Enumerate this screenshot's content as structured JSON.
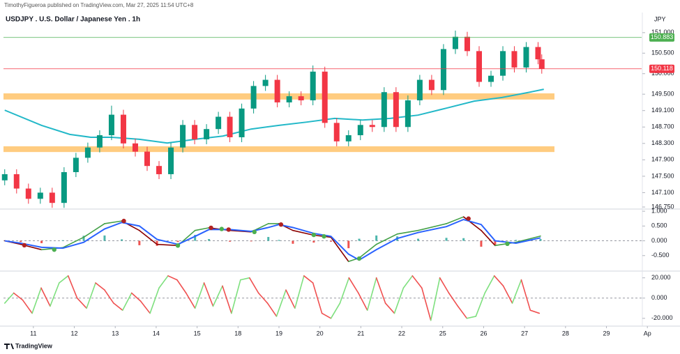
{
  "header": "TimothyFigueroa published on TradingView.com, Mar 27, 2025 11:54 UTC+8",
  "currency": "JPY",
  "footer_brand": "TradingView",
  "chart_data": [
    {
      "type": "candlestick",
      "title": "USDJPY . U.S. Dollar / Japanese Yen . 1h",
      "xlim": [
        -0.73,
        14.86
      ],
      "xticks": [
        {
          "value": 0,
          "label": "11"
        },
        {
          "value": 1,
          "label": "12"
        },
        {
          "value": 2,
          "label": "13"
        },
        {
          "value": 3,
          "label": "14"
        },
        {
          "value": 4,
          "label": "15"
        },
        {
          "value": 5,
          "label": "18"
        },
        {
          "value": 6,
          "label": "19"
        },
        {
          "value": 7,
          "label": "20"
        },
        {
          "value": 8,
          "label": "21"
        },
        {
          "value": 9,
          "label": "22"
        },
        {
          "value": 10,
          "label": "25"
        },
        {
          "value": 11,
          "label": "26"
        },
        {
          "value": 12,
          "label": "27"
        },
        {
          "value": 13,
          "label": "28"
        },
        {
          "value": 14,
          "label": "29"
        },
        {
          "value": 15,
          "label": "Ap"
        }
      ],
      "ylim": [
        146.7,
        151.49
      ],
      "yticks": [
        {
          "value": 151,
          "label": "151.000"
        },
        {
          "value": 150.5,
          "label": "150.500"
        },
        {
          "value": 150,
          "label": "150.000"
        },
        {
          "value": 149.5,
          "label": "149.500"
        },
        {
          "value": 149.1,
          "label": "149.100"
        },
        {
          "value": 148.7,
          "label": "148.700"
        },
        {
          "value": 148.3,
          "label": "148.300"
        },
        {
          "value": 147.9,
          "label": "147.900"
        },
        {
          "value": 147.5,
          "label": "147.500"
        },
        {
          "value": 147.1,
          "label": "147.100"
        },
        {
          "value": 146.75,
          "label": "146.750"
        }
      ],
      "up_color": "#089981",
      "down_color": "#f23645",
      "x": [
        -0.7,
        -0.41,
        -0.12,
        0.17,
        0.46,
        0.75,
        1.04,
        1.33,
        1.62,
        1.91,
        2.2,
        2.49,
        2.78,
        3.07,
        3.36,
        3.65,
        3.94,
        4.23,
        4.52,
        4.8,
        5.09,
        5.38,
        5.67,
        5.96,
        6.25,
        6.54,
        6.83,
        7.12,
        7.41,
        7.7,
        7.99,
        8.28,
        8.57,
        8.86,
        9.15,
        9.44,
        9.73,
        10.02,
        10.31,
        10.6,
        10.89,
        11.18,
        11.47,
        11.75,
        12.04,
        12.33,
        12.42
      ],
      "open": [
        147.4,
        147.55,
        147.2,
        146.95,
        147.1,
        146.85,
        147.6,
        147.95,
        148.2,
        148.5,
        149.0,
        148.3,
        148.1,
        147.75,
        147.55,
        148.2,
        148.75,
        148.4,
        148.65,
        148.95,
        148.45,
        149.15,
        149.7,
        149.85,
        149.3,
        149.45,
        149.35,
        150.05,
        148.8,
        148.35,
        148.5,
        148.75,
        148.7,
        149.55,
        148.7,
        149.35,
        149.85,
        149.6,
        150.6,
        150.9,
        150.55,
        149.8,
        149.95,
        150.55,
        150.15,
        150.65,
        150.35
      ],
      "high": [
        147.67,
        147.67,
        147.32,
        147.22,
        147.22,
        147.72,
        148.07,
        148.32,
        148.62,
        149.22,
        149.12,
        148.42,
        148.22,
        147.87,
        148.32,
        148.87,
        148.87,
        148.77,
        149.07,
        149.07,
        149.27,
        149.82,
        149.97,
        149.97,
        149.57,
        149.57,
        150.2,
        150.17,
        148.92,
        148.62,
        148.87,
        148.87,
        149.67,
        149.67,
        149.47,
        149.97,
        149.97,
        150.72,
        151.05,
        151.02,
        150.67,
        150.07,
        150.67,
        150.67,
        150.77,
        150.77,
        150.47
      ],
      "low": [
        147.28,
        147.08,
        146.83,
        146.83,
        146.73,
        146.73,
        147.48,
        147.83,
        148.08,
        148.38,
        148.18,
        147.98,
        147.63,
        147.43,
        147.43,
        148.08,
        148.28,
        148.28,
        148.53,
        148.33,
        148.33,
        149.03,
        149.58,
        149.18,
        149.18,
        149.23,
        149.23,
        148.68,
        148.23,
        148.23,
        148.38,
        148.58,
        148.58,
        148.58,
        148.58,
        149.23,
        149.48,
        149.48,
        150.48,
        150.43,
        149.68,
        149.68,
        149.83,
        150.03,
        150.03,
        150.23,
        150.0
      ],
      "close": [
        147.55,
        147.2,
        146.95,
        147.1,
        146.85,
        147.6,
        147.95,
        148.2,
        148.5,
        149.0,
        148.3,
        148.1,
        147.75,
        147.55,
        148.2,
        148.75,
        148.4,
        148.65,
        148.95,
        148.45,
        149.15,
        149.7,
        149.85,
        149.3,
        149.45,
        149.35,
        150.05,
        148.8,
        148.35,
        148.5,
        148.75,
        148.7,
        149.55,
        148.7,
        149.35,
        149.85,
        149.6,
        150.6,
        150.9,
        150.55,
        149.8,
        149.95,
        150.55,
        150.15,
        150.65,
        150.35,
        150.12
      ],
      "series": [
        {
          "color": "#22b8c8",
          "x": [
            -0.7,
            0.2,
            0.89,
            1.4,
            1.91,
            2.59,
            3.27,
            3.95,
            4.63,
            5.32,
            6.0,
            6.68,
            7.36,
            8.04,
            8.72,
            9.4,
            10.09,
            10.77,
            11.45,
            12.13,
            12.47
          ],
          "values": [
            149.11,
            148.74,
            148.52,
            148.45,
            148.45,
            148.4,
            148.31,
            148.4,
            148.48,
            148.65,
            148.74,
            148.82,
            148.91,
            148.87,
            148.91,
            148.99,
            149.16,
            149.33,
            149.42,
            149.55,
            149.62
          ]
        }
      ],
      "zone_color": "#ffcc80",
      "zones": [
        {
          "from": 149.37,
          "to": 149.52,
          "x0": -0.73,
          "x1": 12.73
        },
        {
          "from": 148.09,
          "to": 148.23,
          "x0": -0.73,
          "x1": 12.73
        }
      ],
      "price_lines": [
        {
          "value": 150.883,
          "label": "150.883",
          "color": "#4caf50"
        },
        {
          "value": 150.118,
          "label": "150.118",
          "color": "#f23645"
        }
      ]
    },
    {
      "type": "macd",
      "ylim": [
        -1.0,
        1.05
      ],
      "zero_line": true,
      "yticks": [
        {
          "value": 1,
          "label": "1.000"
        },
        {
          "value": 0.5,
          "label": "0.500"
        },
        {
          "value": 0,
          "label": "0.000"
        },
        {
          "value": -0.5,
          "label": "-0.500"
        }
      ],
      "series": [
        {
          "up_color": "#43a047",
          "down_color": "#8b0000",
          "x": [
            -0.7,
            -0.31,
            0.2,
            0.72,
            1.23,
            1.74,
            2.16,
            2.59,
            3.02,
            3.53,
            3.95,
            4.29,
            4.8,
            5.32,
            5.74,
            6.0,
            6.34,
            6.85,
            7.27,
            7.7,
            7.96,
            8.38,
            8.89,
            9.4,
            10.09,
            10.51,
            10.94,
            11.28,
            11.79,
            12.39
          ],
          "values": [
            0,
            -0.12,
            -0.3,
            -0.23,
            0.12,
            0.58,
            0.67,
            0.35,
            -0.12,
            -0.16,
            0.35,
            0.44,
            0.35,
            0.3,
            0.58,
            0.58,
            0.35,
            0.19,
            0.12,
            -0.7,
            -0.58,
            -0.12,
            0.23,
            0.35,
            0.58,
            0.81,
            0.35,
            -0.16,
            -0.05,
            0.16
          ]
        },
        {
          "color": "#2962ff",
          "x": [
            -0.7,
            -0.31,
            0.2,
            0.72,
            1.23,
            1.74,
            2.16,
            2.59,
            3.02,
            3.53,
            3.95,
            4.29,
            4.8,
            5.32,
            5.74,
            6.0,
            6.34,
            6.85,
            7.27,
            7.7,
            7.96,
            8.38,
            8.89,
            9.4,
            10.09,
            10.51,
            10.94,
            11.28,
            11.79,
            12.39
          ],
          "values": [
            0,
            -0.08,
            -0.22,
            -0.25,
            -0.05,
            0.4,
            0.62,
            0.5,
            0.05,
            -0.12,
            0.15,
            0.38,
            0.38,
            0.32,
            0.45,
            0.55,
            0.45,
            0.25,
            0.15,
            -0.45,
            -0.65,
            -0.3,
            0.08,
            0.28,
            0.48,
            0.72,
            0.55,
            0.0,
            -0.08,
            0.1
          ]
        }
      ],
      "histogram": {
        "up_color": "#4db6ac",
        "down_color": "#ef5350",
        "x": [
          -0.7,
          -0.31,
          0.2,
          0.72,
          1.23,
          1.74,
          2.16,
          2.59,
          3.02,
          3.53,
          3.95,
          4.29,
          4.8,
          5.32,
          5.74,
          6.0,
          6.34,
          6.85,
          7.27,
          7.7,
          7.96,
          8.38,
          8.89,
          9.4,
          10.09,
          10.51,
          10.94,
          11.28,
          11.79,
          12.39
        ],
        "values": [
          0,
          -0.04,
          -0.08,
          0.02,
          0.17,
          0.18,
          0.05,
          -0.15,
          -0.17,
          -0.04,
          0.2,
          0.06,
          -0.03,
          -0.02,
          0.13,
          0.03,
          -0.1,
          -0.06,
          -0.03,
          -0.25,
          0.07,
          0.18,
          0.15,
          0.07,
          0.1,
          0.09,
          -0.2,
          -0.16,
          0.03,
          0.06
        ]
      },
      "signals": {
        "x": [
          -0.22,
          0.51,
          2.21,
          3.53,
          4.34,
          4.6,
          4.77,
          5.4,
          6.05,
          6.85,
          7.1,
          7.96,
          10.63,
          11.58
        ],
        "values": [
          -0.15,
          -0.3,
          0.67,
          -0.16,
          0.44,
          0.4,
          0.38,
          0.3,
          0.55,
          0.2,
          0.15,
          -0.6,
          0.75,
          -0.1
        ],
        "colors": [
          "#b22222",
          "#4caf50",
          "#b22222",
          "#4caf50",
          "#b22222",
          "#4caf50",
          "#b22222",
          "#4caf50",
          "#b22222",
          "#4caf50",
          "#4caf50",
          "#4caf50",
          "#b22222",
          "#4caf50"
        ]
      }
    },
    {
      "type": "line",
      "ylim": [
        -27,
        26
      ],
      "zero_line": true,
      "yticks": [
        {
          "value": 20,
          "label": "20.000"
        },
        {
          "value": 0,
          "label": "0.000"
        },
        {
          "value": -20,
          "label": "-20.000"
        }
      ],
      "series": [
        {
          "up_color": "#7ee07e",
          "down_color": "#f05050",
          "x": [
            -0.7,
            -0.48,
            -0.26,
            -0.03,
            0.19,
            0.41,
            0.63,
            0.85,
            1.07,
            1.3,
            1.52,
            1.74,
            1.96,
            2.18,
            2.4,
            2.62,
            2.85,
            3.07,
            3.29,
            3.51,
            3.73,
            3.95,
            4.17,
            4.39,
            4.62,
            4.84,
            5.06,
            5.28,
            5.5,
            5.72,
            5.94,
            6.17,
            6.39,
            6.61,
            6.83,
            7.05,
            7.27,
            7.49,
            7.71,
            7.94,
            8.16,
            8.38,
            8.6,
            8.82,
            9.04,
            9.26,
            9.49,
            9.71,
            9.93,
            10.15,
            10.37,
            10.59,
            10.81,
            11.03,
            11.26,
            11.48,
            11.7,
            11.92,
            12.14,
            12.36
          ],
          "values": [
            -5,
            5,
            -2,
            -15,
            10,
            -8,
            15,
            22,
            0,
            -10,
            15,
            8,
            -5,
            -12,
            5,
            -3,
            -15,
            10,
            22,
            18,
            5,
            -10,
            15,
            -8,
            12,
            -15,
            18,
            20,
            5,
            -5,
            -18,
            8,
            -10,
            22,
            15,
            -15,
            -20,
            -5,
            20,
            5,
            -12,
            20,
            -5,
            -15,
            10,
            22,
            10,
            -22,
            20,
            5,
            -8,
            -20,
            -18,
            5,
            22,
            12,
            -5,
            18,
            -12,
            -15
          ]
        }
      ]
    }
  ]
}
